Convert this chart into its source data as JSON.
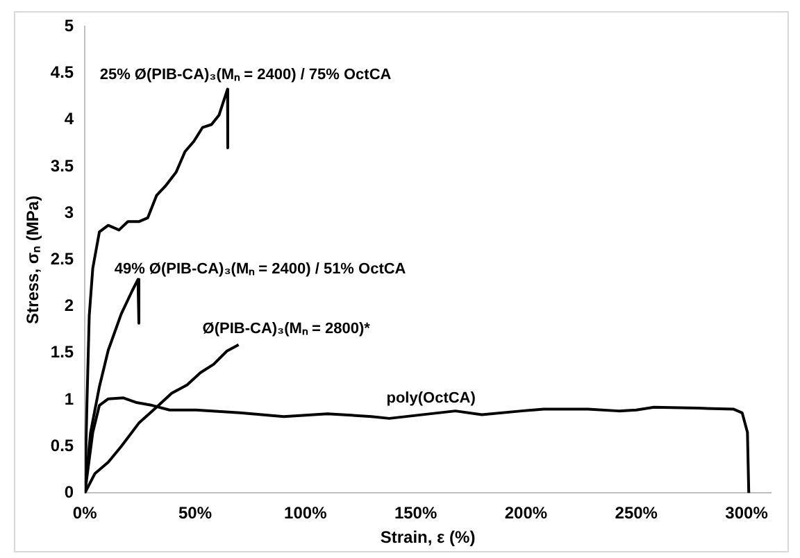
{
  "chart_data": {
    "type": "line",
    "xlabel": "Strain, ε (%)",
    "ylabel": "Stress, σₙ (MPa)",
    "xlim": [
      0,
      311
    ],
    "xticks": [
      {
        "value": 0,
        "label": "0%"
      },
      {
        "value": 50,
        "label": "50%"
      },
      {
        "value": 100,
        "label": "100%"
      },
      {
        "value": 150,
        "label": "150%"
      },
      {
        "value": 200,
        "label": "200%"
      },
      {
        "value": 250,
        "label": "250%"
      },
      {
        "value": 300,
        "label": "300%"
      }
    ],
    "ylim": [
      0,
      5
    ],
    "yticks": [
      0,
      0.5,
      1,
      1.5,
      2,
      2.5,
      3,
      3.5,
      4,
      4.5,
      5
    ],
    "grid": false,
    "legend": false,
    "marker": "none",
    "line_style": "solid",
    "series": [
      {
        "name": "25% Ø(PIB-CA)₃(Mₙ = 2400) / 75% OctCA",
        "color": "#000000",
        "x": [
          0,
          1,
          2,
          3.6,
          6.6,
          10.6,
          15.5,
          19.5,
          24.5,
          28.5,
          32.5,
          36.5,
          41.4,
          45.4,
          49.4,
          53.4,
          57.4,
          60.8,
          64.7,
          64.8
        ],
        "values": [
          0,
          1.0,
          1.9,
          2.41,
          2.8,
          2.87,
          2.82,
          2.91,
          2.91,
          2.95,
          3.19,
          3.29,
          3.44,
          3.66,
          3.77,
          3.92,
          3.95,
          4.05,
          4.33,
          3.7
        ]
      },
      {
        "name": "49% Ø(PIB-CA)₃(Mₙ = 2400) / 51% OctCA",
        "color": "#000000",
        "x": [
          0,
          2.6,
          6.6,
          10.6,
          16.5,
          21.5,
          24.1,
          24.5
        ],
        "values": [
          0,
          0.65,
          1.14,
          1.53,
          1.92,
          2.17,
          2.29,
          1.82
        ]
      },
      {
        "name": "Ø(PIB-CA)₃(Mₙ = 2800)*",
        "color": "#000000",
        "x": [
          0,
          4.6,
          10.6,
          16.5,
          24.5,
          32.5,
          39.4,
          46.4,
          52.4,
          58.4,
          64.3,
          69.7
        ],
        "values": [
          0,
          0.21,
          0.33,
          0.5,
          0.75,
          0.92,
          1.07,
          1.16,
          1.29,
          1.38,
          1.52,
          1.59
        ]
      },
      {
        "name": "poly(OctCA)",
        "color": "#000000",
        "x": [
          0,
          3.6,
          6.6,
          10.6,
          17.5,
          23.5,
          30.5,
          38.4,
          50.4,
          70.3,
          90.2,
          110,
          130,
          138,
          168,
          180,
          198,
          208,
          228,
          242,
          250,
          258,
          278,
          294,
          298,
          300.4,
          301
        ],
        "values": [
          0,
          0.65,
          0.94,
          1.01,
          1.02,
          0.97,
          0.94,
          0.89,
          0.89,
          0.86,
          0.82,
          0.85,
          0.82,
          0.8,
          0.88,
          0.84,
          0.88,
          0.9,
          0.9,
          0.88,
          0.89,
          0.92,
          0.91,
          0.9,
          0.86,
          0.65,
          0
        ]
      }
    ]
  }
}
